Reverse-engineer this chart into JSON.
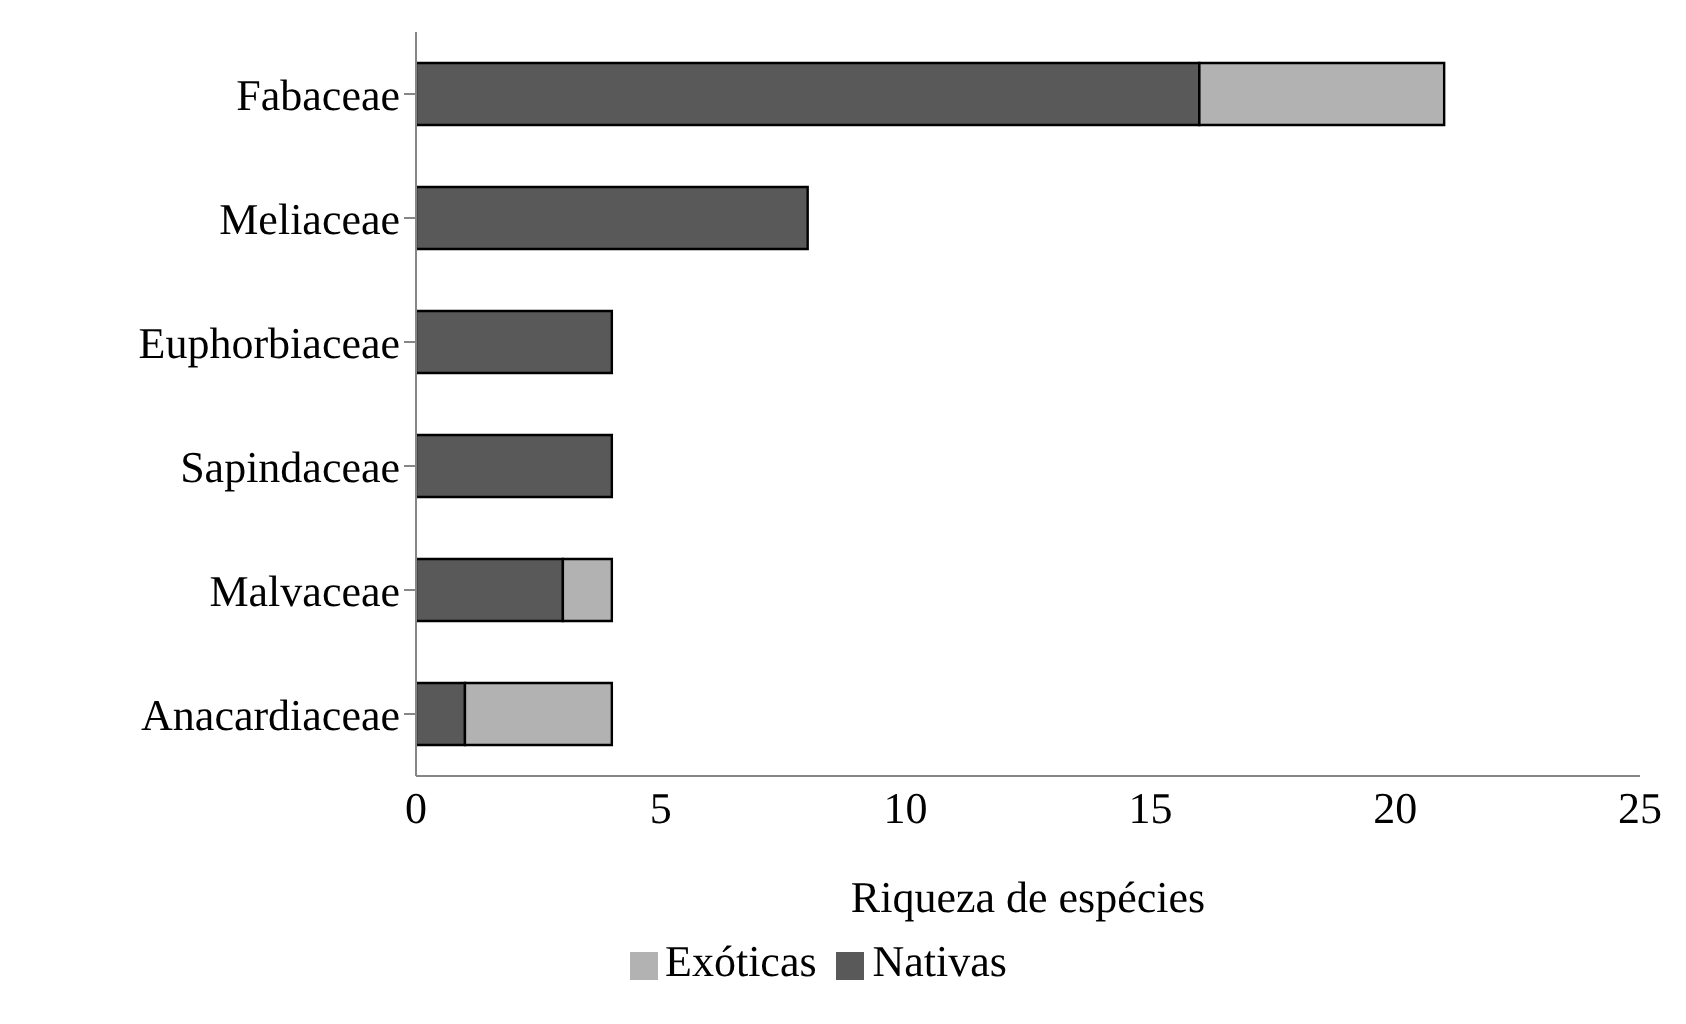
{
  "chart_data": {
    "type": "bar",
    "orientation": "horizontal",
    "stacked": true,
    "xlabel": "Riqueza de espécies",
    "categories": [
      "Fabaceae",
      "Meliaceae",
      "Euphorbiaceae",
      "Sapindaceae",
      "Malvaceae",
      "Anacardiaceae"
    ],
    "series": [
      {
        "name": "Nativas",
        "color": "#595959",
        "values": [
          16,
          8,
          4,
          4,
          3,
          1
        ]
      },
      {
        "name": "Exóticas",
        "color": "#b2b2b2",
        "values": [
          5,
          0,
          0,
          0,
          1,
          3
        ]
      }
    ],
    "xlim": [
      0,
      25
    ],
    "xticks": [
      0,
      5,
      10,
      15,
      20,
      25
    ],
    "grid": false,
    "legend": "bottom"
  }
}
